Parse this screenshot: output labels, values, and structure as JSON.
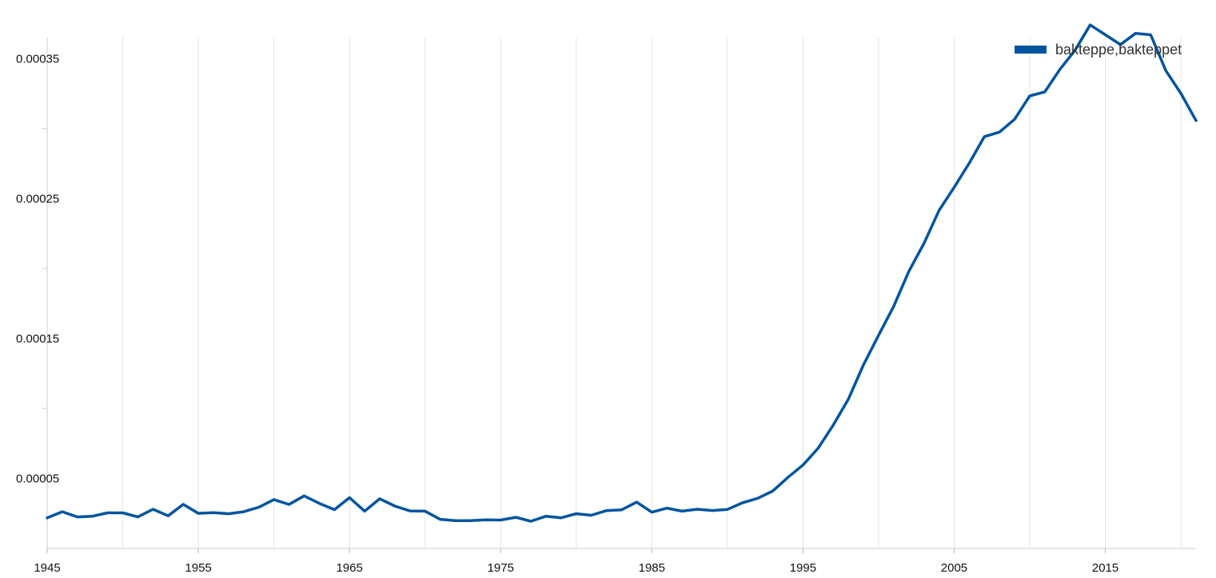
{
  "chart_data": {
    "type": "line",
    "title": "",
    "xlabel": "",
    "ylabel": "",
    "legend_position": "top-right",
    "grid": "vertical",
    "xlim": [
      1945,
      2021
    ],
    "ylim": [
      0.0,
      0.000365
    ],
    "x_ticks": [
      1945,
      1955,
      1965,
      1975,
      1985,
      1995,
      2005,
      2015
    ],
    "x_tick_labels": [
      "1945",
      "1955",
      "1965",
      "1975",
      "1985",
      "1995",
      "2005",
      "2015"
    ],
    "y_ticks": [
      5e-05,
      0.00015,
      0.00025,
      0.00035
    ],
    "y_tick_labels": [
      "0.00005",
      "0.00015",
      "0.00025",
      "0.00035"
    ],
    "y_minor_ticks": [
      0.0001,
      0.0002,
      0.0003
    ],
    "series": [
      {
        "name": "bakteppe,bakteppet",
        "color": "#0054a0",
        "x": [
          1945,
          1946,
          1947,
          1948,
          1949,
          1950,
          1951,
          1952,
          1953,
          1954,
          1955,
          1956,
          1957,
          1958,
          1959,
          1960,
          1961,
          1962,
          1963,
          1964,
          1965,
          1966,
          1967,
          1968,
          1969,
          1970,
          1971,
          1972,
          1973,
          1974,
          1975,
          1976,
          1977,
          1978,
          1979,
          1980,
          1981,
          1982,
          1983,
          1984,
          1985,
          1986,
          1987,
          1988,
          1989,
          1990,
          1991,
          1992,
          1993,
          1994,
          1995,
          1996,
          1997,
          1998,
          1999,
          2000,
          2001,
          2002,
          2003,
          2004,
          2005,
          2006,
          2007,
          2008,
          2009,
          2010,
          2011,
          2012,
          2013,
          2014,
          2015,
          2016,
          2017,
          2018,
          2019,
          2020,
          2021
        ],
        "values": [
          2.18e-05,
          2.62e-05,
          2.25e-05,
          2.3e-05,
          2.54e-05,
          2.54e-05,
          2.25e-05,
          2.8e-05,
          2.33e-05,
          3.15e-05,
          2.51e-05,
          2.56e-05,
          2.48e-05,
          2.62e-05,
          2.94e-05,
          3.49e-05,
          3.14e-05,
          3.75e-05,
          3.22e-05,
          2.77e-05,
          3.63e-05,
          2.66e-05,
          3.55e-05,
          3.03e-05,
          2.68e-05,
          2.66e-05,
          2.08e-05,
          1.98e-05,
          1.99e-05,
          2.04e-05,
          2.03e-05,
          2.22e-05,
          1.94e-05,
          2.3e-05,
          2.19e-05,
          2.48e-05,
          2.37e-05,
          2.7e-05,
          2.76e-05,
          3.31e-05,
          2.59e-05,
          2.88e-05,
          2.66e-05,
          2.8e-05,
          2.71e-05,
          2.79e-05,
          3.26e-05,
          3.58e-05,
          4.1e-05,
          5.07e-05,
          5.96e-05,
          7.16e-05,
          8.81e-05,
          0.0001066,
          0.0001311,
          0.0001523,
          0.0001729,
          0.000198,
          0.0002179,
          0.0002415,
          0.000258,
          0.0002753,
          0.0002942,
          0.0002975,
          0.0003066,
          0.0003233,
          0.0003262,
          0.0003423,
          0.000356,
          0.000374,
          0.000367,
          0.00036,
          0.000368,
          0.000367,
          0.0003414,
          0.0003251,
          0.0003057
        ]
      }
    ]
  }
}
